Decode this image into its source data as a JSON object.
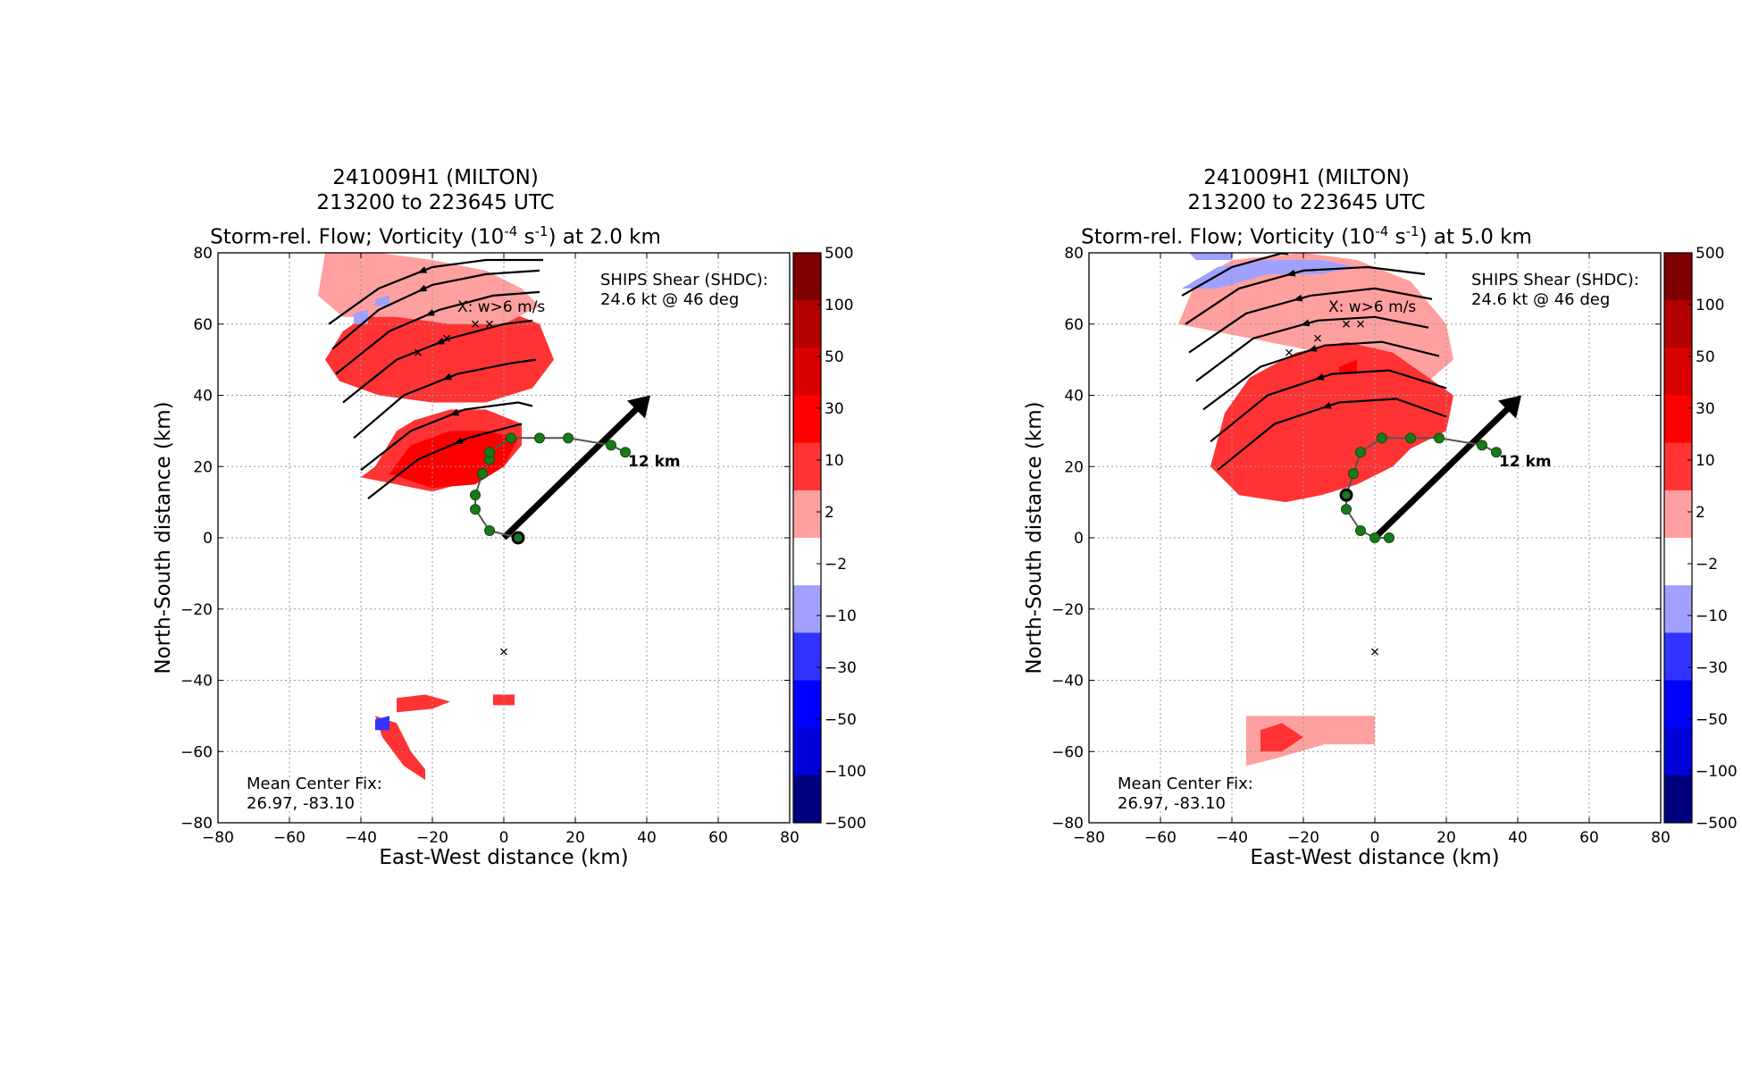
{
  "figure": {
    "panels": [
      {
        "title_line1": "241009H1 (MILTON)",
        "title_line2": "213200 to 223645 UTC",
        "title_line3_pre": "Storm-rel. Flow; Vorticity (10",
        "title_line3_exp1": "-4",
        "title_line3_mid": " s",
        "title_line3_exp2": "-1",
        "title_line3_post": ") at 2.0 km",
        "shear_line1": "SHIPS Shear (SHDC):",
        "shear_line2": "24.6 kt @ 46 deg",
        "updraft_label": "X: w>6 m/s",
        "tilt_label": "12 km",
        "center_line1": "Mean Center Fix:",
        "center_line2": "26.97, -83.10"
      },
      {
        "title_line1": "241009H1 (MILTON)",
        "title_line2": "213200 to 223645 UTC",
        "title_line3_pre": "Storm-rel. Flow; Vorticity (10",
        "title_line3_exp1": "-4",
        "title_line3_mid": " s",
        "title_line3_exp2": "-1",
        "title_line3_post": ") at 5.0 km",
        "shear_line1": "SHIPS Shear (SHDC):",
        "shear_line2": "24.6 kt @ 46 deg",
        "updraft_label": "X: w>6 m/s",
        "tilt_label": "12 km",
        "center_line1": "Mean Center Fix:",
        "center_line2": "26.97, -83.10"
      }
    ]
  },
  "chart_data": [
    {
      "type": "heatmap",
      "title": "241009H1 (MILTON) 213200 to 223645 UTC Storm-rel. Flow; Vorticity (10^-4 s^-1) at 2.0 km",
      "xlabel": "East-West distance (km)",
      "ylabel": "North-South distance (km)",
      "xlim": [
        -80,
        80
      ],
      "ylim": [
        -80,
        80
      ],
      "xticks": [
        "−80",
        "−60",
        "−40",
        "−20",
        "0",
        "20",
        "40",
        "60",
        "80"
      ],
      "yticks": [
        "80",
        "60",
        "40",
        "20",
        "0",
        "−20",
        "−40",
        "−60",
        "−80"
      ],
      "grid": true,
      "colorbar": {
        "levels": [
          "500",
          "100",
          "50",
          "30",
          "10",
          "2",
          "−2",
          "−10",
          "−30",
          "−50",
          "−100",
          "−500"
        ],
        "colors": [
          "#7f0000",
          "#b30000",
          "#d90000",
          "#ff0000",
          "#ff3333",
          "#ffa0a0",
          "#ffffff",
          "#a0a0ff",
          "#3333ff",
          "#0000ff",
          "#0000d9",
          "#00007f"
        ]
      },
      "vorticity_regions": [
        {
          "level": "10 to 30",
          "polygon": [
            [
              -36,
              20
            ],
            [
              -30,
              30
            ],
            [
              -25,
              33
            ],
            [
              -15,
              36
            ],
            [
              -5,
              36
            ],
            [
              5,
              32
            ],
            [
              5,
              26
            ],
            [
              0,
              20
            ],
            [
              -5,
              17
            ],
            [
              -20,
              13
            ],
            [
              -30,
              15
            ],
            [
              -40,
              17
            ]
          ]
        },
        {
          "level": "30 to 50",
          "polygon": [
            [
              -32,
              18
            ],
            [
              -26,
              26
            ],
            [
              -15,
              30
            ],
            [
              -5,
              30
            ],
            [
              4,
              28
            ],
            [
              0,
              20
            ],
            [
              -8,
              15
            ],
            [
              -20,
              14
            ]
          ]
        },
        {
          "level": "10 to 30",
          "polygon": [
            [
              -50,
              50
            ],
            [
              -45,
              58
            ],
            [
              -35,
              65
            ],
            [
              -20,
              68
            ],
            [
              -5,
              66
            ],
            [
              10,
              60
            ],
            [
              14,
              50
            ],
            [
              8,
              42
            ],
            [
              -5,
              38
            ],
            [
              -20,
              38
            ],
            [
              -35,
              40
            ],
            [
              -46,
              44
            ]
          ]
        },
        {
          "level": "2 to 10",
          "polygon": [
            [
              -50,
              80
            ],
            [
              -35,
              80
            ],
            [
              -20,
              78
            ],
            [
              -5,
              75
            ],
            [
              5,
              70
            ],
            [
              10,
              65
            ],
            [
              0,
              60
            ],
            [
              -15,
              60
            ],
            [
              -30,
              62
            ],
            [
              -45,
              62
            ],
            [
              -52,
              68
            ]
          ]
        },
        {
          "level": "10 to 30",
          "polygon": [
            [
              -30,
              -45
            ],
            [
              -22,
              -44
            ],
            [
              -15,
              -46
            ],
            [
              -20,
              -48
            ],
            [
              -30,
              -49
            ]
          ]
        },
        {
          "level": "10 to 30",
          "polygon": [
            [
              -36,
              -50
            ],
            [
              -30,
              -52
            ],
            [
              -26,
              -60
            ],
            [
              -22,
              -65
            ],
            [
              -22,
              -68
            ],
            [
              -28,
              -64
            ],
            [
              -34,
              -56
            ]
          ]
        },
        {
          "level": "10 to 30",
          "polygon": [
            [
              -3,
              -44
            ],
            [
              3,
              -44
            ],
            [
              3,
              -47
            ],
            [
              -3,
              -47
            ]
          ]
        },
        {
          "level": "−10 to −30",
          "polygon": [
            [
              -36,
              -51
            ],
            [
              -32,
              -50
            ],
            [
              -32,
              -54
            ],
            [
              -36,
              -54
            ]
          ]
        },
        {
          "level": "−2 to −10",
          "polygon": [
            [
              -42,
              63
            ],
            [
              -38,
              64
            ],
            [
              -38,
              60
            ],
            [
              -42,
              60
            ]
          ]
        },
        {
          "level": "−2 to −10",
          "polygon": [
            [
              -36,
              67
            ],
            [
              -32,
              68
            ],
            [
              -32,
              65
            ],
            [
              -36,
              65
            ]
          ]
        }
      ],
      "streamlines": [
        {
          "x": [
            -49,
            -35,
            -20,
            -5,
            11
          ],
          "y": [
            60,
            70,
            76,
            78,
            78
          ]
        },
        {
          "x": [
            -48,
            -35,
            -20,
            -5,
            10
          ],
          "y": [
            53,
            64,
            71,
            74,
            75
          ]
        },
        {
          "x": [
            -47,
            -32,
            -18,
            -3,
            10
          ],
          "y": [
            46,
            58,
            64,
            68,
            69
          ]
        },
        {
          "x": [
            -45,
            -30,
            -15,
            0,
            8
          ],
          "y": [
            38,
            50,
            56,
            60,
            61
          ]
        },
        {
          "x": [
            -42,
            -28,
            -13,
            2,
            9
          ],
          "y": [
            28,
            40,
            46,
            49,
            50
          ]
        },
        {
          "x": [
            -40,
            -26,
            -11,
            4,
            8
          ],
          "y": [
            19,
            30,
            36,
            38,
            37
          ]
        },
        {
          "x": [
            -38,
            -24,
            -10,
            5
          ],
          "y": [
            11,
            22,
            28,
            32
          ]
        }
      ],
      "updraft_points": [
        [
          -8,
          60
        ],
        [
          -4,
          60
        ],
        [
          -16,
          56
        ],
        [
          -24,
          52
        ],
        [
          0,
          -32
        ]
      ],
      "tilt_track": {
        "x": [
          4,
          -4,
          -8,
          -8,
          -6,
          -4,
          -4,
          2,
          10,
          18,
          30,
          34
        ],
        "y": [
          0,
          2,
          8,
          12,
          18,
          22,
          24,
          28,
          28,
          28,
          26,
          24
        ],
        "heights_km": [
          1,
          2,
          3,
          4,
          5,
          6,
          7,
          8,
          9,
          10,
          11,
          12
        ]
      },
      "shear_vector": {
        "from": [
          0,
          0
        ],
        "to": [
          41,
          40
        ]
      }
    },
    {
      "type": "heatmap",
      "title": "241009H1 (MILTON) 213200 to 223645 UTC Storm-rel. Flow; Vorticity (10^-4 s^-1) at 5.0 km",
      "xlabel": "East-West distance (km)",
      "ylabel": "North-South distance (km)",
      "xlim": [
        -80,
        80
      ],
      "ylim": [
        -80,
        80
      ],
      "xticks": [
        "−80",
        "−60",
        "−40",
        "−20",
        "0",
        "20",
        "40",
        "60",
        "80"
      ],
      "yticks": [
        "80",
        "60",
        "40",
        "20",
        "0",
        "−20",
        "−40",
        "−60",
        "−80"
      ],
      "grid": true,
      "colorbar": {
        "levels": [
          "500",
          "100",
          "50",
          "30",
          "10",
          "2",
          "−2",
          "−10",
          "−30",
          "−50",
          "−100",
          "−500"
        ],
        "colors": [
          "#7f0000",
          "#b30000",
          "#d90000",
          "#ff0000",
          "#ff3333",
          "#ffa0a0",
          "#ffffff",
          "#a0a0ff",
          "#3333ff",
          "#0000ff",
          "#0000d9",
          "#00007f"
        ]
      },
      "vorticity_regions": [
        {
          "level": "2 to 10",
          "polygon": [
            [
              -55,
              60
            ],
            [
              -50,
              72
            ],
            [
              -40,
              78
            ],
            [
              -20,
              80
            ],
            [
              -5,
              78
            ],
            [
              10,
              72
            ],
            [
              20,
              60
            ],
            [
              22,
              50
            ],
            [
              15,
              44
            ],
            [
              0,
              48
            ],
            [
              -15,
              52
            ],
            [
              -30,
              55
            ],
            [
              -45,
              58
            ]
          ]
        },
        {
          "level": "10 to 30",
          "polygon": [
            [
              -46,
              20
            ],
            [
              -42,
              35
            ],
            [
              -35,
              45
            ],
            [
              -22,
              52
            ],
            [
              -8,
              55
            ],
            [
              5,
              52
            ],
            [
              15,
              45
            ],
            [
              22,
              40
            ],
            [
              20,
              30
            ],
            [
              10,
              25
            ],
            [
              5,
              20
            ],
            [
              -5,
              15
            ],
            [
              -15,
              12
            ],
            [
              -25,
              10
            ],
            [
              -38,
              12
            ]
          ]
        },
        {
          "level": "30 to 50",
          "polygon": [
            [
              -10,
              48
            ],
            [
              -5,
              50
            ],
            [
              -5,
              46
            ],
            [
              -10,
              46
            ]
          ]
        },
        {
          "level": "−2 to −10",
          "polygon": [
            [
              -54,
              70
            ],
            [
              -44,
              76
            ],
            [
              -30,
              78
            ],
            [
              -15,
              78
            ],
            [
              -5,
              76
            ],
            [
              -15,
              74
            ],
            [
              -30,
              74
            ],
            [
              -44,
              70
            ]
          ]
        },
        {
          "level": "−2 to −10",
          "polygon": [
            [
              -52,
              80
            ],
            [
              -40,
              80
            ],
            [
              -40,
              78
            ],
            [
              -50,
              78
            ]
          ]
        },
        {
          "level": "2 to 10",
          "polygon": [
            [
              -36,
              -50
            ],
            [
              -26,
              -50
            ],
            [
              -14,
              -50
            ],
            [
              0,
              -50
            ],
            [
              0,
              -58
            ],
            [
              -14,
              -58
            ],
            [
              -28,
              -62
            ],
            [
              -36,
              -64
            ]
          ]
        },
        {
          "level": "10 to 30",
          "polygon": [
            [
              -32,
              -54
            ],
            [
              -26,
              -52
            ],
            [
              -20,
              -56
            ],
            [
              -26,
              -60
            ],
            [
              -32,
              -60
            ]
          ]
        }
      ],
      "streamlines": [
        {
          "x": [
            -54,
            -40,
            -22,
            -2,
            15
          ],
          "y": [
            68,
            76,
            81,
            82,
            80
          ]
        },
        {
          "x": [
            -53,
            -38,
            -20,
            -2,
            14
          ],
          "y": [
            60,
            70,
            75,
            76,
            74
          ]
        },
        {
          "x": [
            -52,
            -36,
            -18,
            0,
            16
          ],
          "y": [
            52,
            63,
            68,
            70,
            67
          ]
        },
        {
          "x": [
            -50,
            -34,
            -16,
            0,
            15
          ],
          "y": [
            44,
            56,
            61,
            62,
            59
          ]
        },
        {
          "x": [
            -48,
            -32,
            -14,
            2,
            18
          ],
          "y": [
            36,
            48,
            54,
            55,
            51
          ]
        },
        {
          "x": [
            -46,
            -30,
            -12,
            4,
            20
          ],
          "y": [
            27,
            40,
            46,
            47,
            42
          ]
        },
        {
          "x": [
            -44,
            -28,
            -10,
            6,
            20
          ],
          "y": [
            19,
            32,
            38,
            39,
            34
          ]
        }
      ],
      "updraft_points": [
        [
          -8,
          60
        ],
        [
          -4,
          60
        ],
        [
          -16,
          56
        ],
        [
          -24,
          52
        ],
        [
          0,
          -32
        ]
      ],
      "tilt_track": {
        "x": [
          4,
          0,
          -4,
          -8,
          -8,
          -6,
          -4,
          2,
          10,
          18,
          30,
          34
        ],
        "y": [
          0,
          0,
          2,
          8,
          12,
          18,
          24,
          28,
          28,
          28,
          26,
          24
        ],
        "heights_km": [
          1,
          2,
          3,
          4,
          5,
          6,
          7,
          8,
          9,
          10,
          11,
          12
        ]
      },
      "shear_vector": {
        "from": [
          0,
          0
        ],
        "to": [
          41,
          40
        ]
      }
    }
  ]
}
